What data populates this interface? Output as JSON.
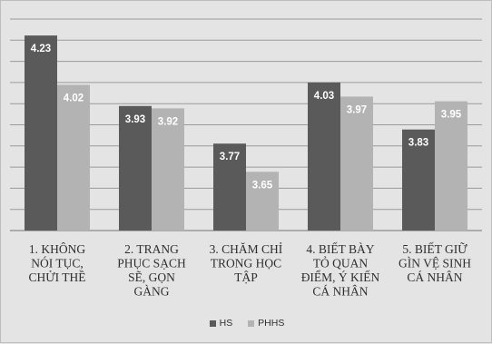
{
  "chart_data": {
    "type": "bar",
    "categories": [
      [
        "1. KHÔNG",
        "NÓI TỤC,",
        "CHỬI THỀ"
      ],
      [
        "2. TRANG",
        "PHỤC SẠCH",
        "SẼ, GỌN",
        "GÀNG"
      ],
      [
        "3. CHĂM CHỈ",
        "TRONG HỌC",
        "TẬP"
      ],
      [
        "4. BIẾT BÀY",
        "TỎ QUAN",
        "ĐIỂM, Ý KIẾN",
        "CÁ NHÂN"
      ],
      [
        "5. BIẾT GIỮ",
        "GÌN VỆ SINH",
        "CÁ NHÂN"
      ]
    ],
    "series": [
      {
        "name": "HS",
        "values": [
          4.23,
          3.93,
          3.77,
          4.03,
          3.83
        ],
        "labels": [
          "4.23",
          "3.93",
          "3.77",
          "4.03",
          "3.83"
        ],
        "color": "#5a5a5a"
      },
      {
        "name": "PHHS",
        "values": [
          4.02,
          3.92,
          3.65,
          3.97,
          3.95
        ],
        "labels": [
          "4.02",
          "3.92",
          "3.65",
          "3.97",
          "3.95"
        ],
        "color": "#b3b3b3"
      }
    ],
    "ylim": [
      3.4,
      4.3
    ],
    "grid": true,
    "legend_position": "bottom",
    "colors": {
      "background": "#e4e4e4",
      "gridline": "#9a9a9a",
      "axis": "#8a8a8a"
    }
  }
}
